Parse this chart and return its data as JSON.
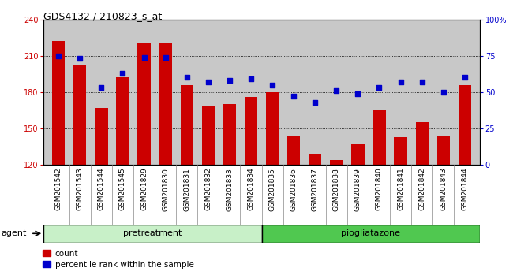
{
  "title": "GDS4132 / 210823_s_at",
  "samples": [
    "GSM201542",
    "GSM201543",
    "GSM201544",
    "GSM201545",
    "GSM201829",
    "GSM201830",
    "GSM201831",
    "GSM201832",
    "GSM201833",
    "GSM201834",
    "GSM201835",
    "GSM201836",
    "GSM201837",
    "GSM201838",
    "GSM201839",
    "GSM201840",
    "GSM201841",
    "GSM201842",
    "GSM201843",
    "GSM201844"
  ],
  "counts": [
    222,
    203,
    167,
    192,
    221,
    221,
    186,
    168,
    170,
    176,
    180,
    144,
    129,
    124,
    137,
    165,
    143,
    155,
    144,
    186
  ],
  "percentile": [
    75,
    73,
    53,
    63,
    74,
    74,
    60,
    57,
    58,
    59,
    55,
    47,
    43,
    51,
    49,
    53,
    57,
    57,
    50,
    60
  ],
  "n_pretreatment": 10,
  "n_piogliatazone": 10,
  "bar_color": "#cc0000",
  "dot_color": "#0000cc",
  "ylim_left": [
    120,
    240
  ],
  "ylim_right": [
    0,
    100
  ],
  "yticks_left": [
    120,
    150,
    180,
    210,
    240
  ],
  "yticks_right": [
    0,
    25,
    50,
    75,
    100
  ],
  "ylabel_left_color": "#cc0000",
  "ylabel_right_color": "#0000cc",
  "bg_color": "#c8c8c8",
  "pretreatment_color": "#c8f0c8",
  "piogliatazone_color": "#50c850",
  "agent_label": "agent",
  "pretreatment_label": "pretreatment",
  "piogliatazone_label": "piogliatazone",
  "legend_count_label": "count",
  "legend_pct_label": "percentile rank within the sample",
  "title_fontsize": 9,
  "tick_fontsize": 7,
  "label_fontsize": 8,
  "legend_fontsize": 7.5
}
